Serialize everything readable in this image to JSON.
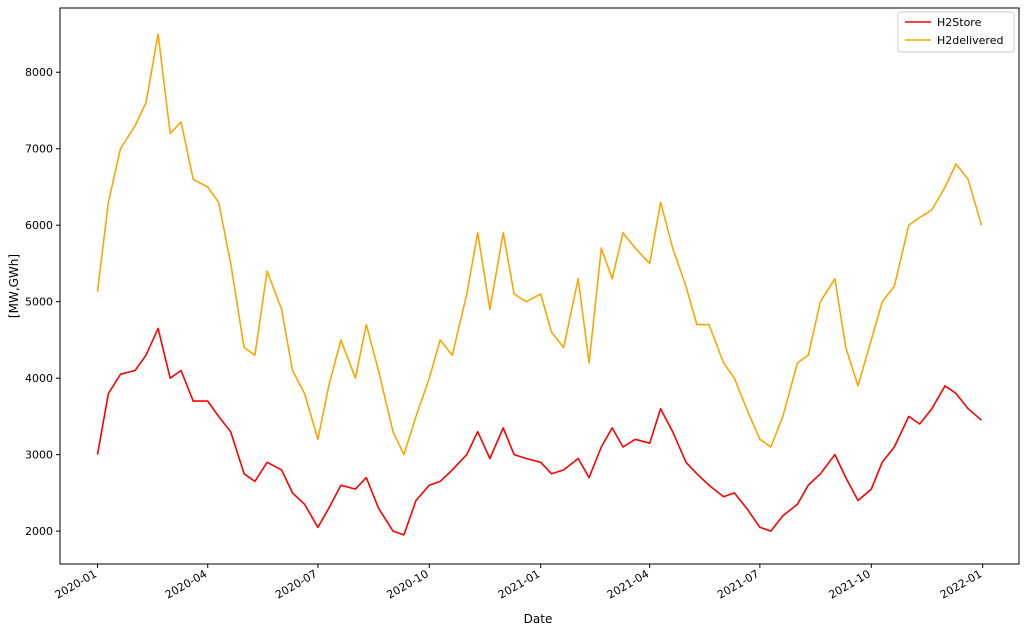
{
  "chart_data": {
    "type": "line",
    "title": "",
    "xlabel": "Date",
    "ylabel": "[MW,GWh]",
    "xlim": [
      "2019-12-01",
      "2022-01-31"
    ],
    "ylim": [
      1570,
      8840
    ],
    "x_ticks": [
      "2020-01",
      "2020-04",
      "2020-07",
      "2020-10",
      "2021-01",
      "2021-04",
      "2021-07",
      "2021-10",
      "2022-01"
    ],
    "y_ticks": [
      2000,
      3000,
      4000,
      5000,
      6000,
      7000,
      8000
    ],
    "grid": false,
    "legend": {
      "position": "top-right"
    },
    "series": [
      {
        "name": "H2Store",
        "color": "#ff0000",
        "x": [
          "2020-01-01",
          "2020-01-10",
          "2020-01-20",
          "2020-02-01",
          "2020-02-10",
          "2020-02-20",
          "2020-03-01",
          "2020-03-10",
          "2020-03-20",
          "2020-04-01",
          "2020-04-10",
          "2020-04-20",
          "2020-05-01",
          "2020-05-10",
          "2020-05-20",
          "2020-06-01",
          "2020-06-10",
          "2020-06-20",
          "2020-07-01",
          "2020-07-10",
          "2020-07-20",
          "2020-08-01",
          "2020-08-10",
          "2020-08-20",
          "2020-09-01",
          "2020-09-10",
          "2020-09-20",
          "2020-10-01",
          "2020-10-10",
          "2020-10-20",
          "2020-11-01",
          "2020-11-10",
          "2020-11-20",
          "2020-12-01",
          "2020-12-10",
          "2020-12-20",
          "2021-01-01",
          "2021-01-10",
          "2021-01-20",
          "2021-02-01",
          "2021-02-10",
          "2021-02-20",
          "2021-03-01",
          "2021-03-10",
          "2021-03-20",
          "2021-04-01",
          "2021-04-10",
          "2021-04-20",
          "2021-05-01",
          "2021-05-10",
          "2021-05-20",
          "2021-06-01",
          "2021-06-10",
          "2021-06-20",
          "2021-07-01",
          "2021-07-10",
          "2021-07-20",
          "2021-08-01",
          "2021-08-10",
          "2021-08-20",
          "2021-09-01",
          "2021-09-10",
          "2021-09-20",
          "2021-10-01",
          "2021-10-10",
          "2021-10-20",
          "2021-11-01",
          "2021-11-10",
          "2021-11-20",
          "2021-12-01",
          "2021-12-10",
          "2021-12-20",
          "2021-12-31"
        ],
        "y": [
          3000,
          3800,
          4050,
          4100,
          4300,
          4650,
          4000,
          4100,
          3700,
          3700,
          3500,
          3300,
          2750,
          2650,
          2900,
          2800,
          2500,
          2350,
          2050,
          2300,
          2600,
          2550,
          2700,
          2300,
          2000,
          1950,
          2400,
          2600,
          2650,
          2800,
          3000,
          3300,
          2950,
          3350,
          3000,
          2950,
          2900,
          2750,
          2800,
          2950,
          2700,
          3100,
          3350,
          3100,
          3200,
          3150,
          3600,
          3300,
          2900,
          2750,
          2600,
          2450,
          2500,
          2300,
          2050,
          2000,
          2200,
          2350,
          2600,
          2750,
          3000,
          2700,
          2400,
          2550,
          2900,
          3100,
          3500,
          3400,
          3600,
          3900,
          3800,
          3600,
          3450
        ]
      },
      {
        "name": "H2delivered",
        "color": "#ffa500",
        "x": [
          "2020-01-01",
          "2020-01-10",
          "2020-01-20",
          "2020-02-01",
          "2020-02-10",
          "2020-02-20",
          "2020-03-01",
          "2020-03-10",
          "2020-03-20",
          "2020-04-01",
          "2020-04-10",
          "2020-04-20",
          "2020-05-01",
          "2020-05-10",
          "2020-05-20",
          "2020-06-01",
          "2020-06-10",
          "2020-06-20",
          "2020-07-01",
          "2020-07-10",
          "2020-07-20",
          "2020-08-01",
          "2020-08-10",
          "2020-08-20",
          "2020-09-01",
          "2020-09-10",
          "2020-09-20",
          "2020-10-01",
          "2020-10-10",
          "2020-10-20",
          "2020-11-01",
          "2020-11-10",
          "2020-11-20",
          "2020-12-01",
          "2020-12-10",
          "2020-12-20",
          "2021-01-01",
          "2021-01-10",
          "2021-01-20",
          "2021-02-01",
          "2021-02-10",
          "2021-02-20",
          "2021-03-01",
          "2021-03-10",
          "2021-03-20",
          "2021-04-01",
          "2021-04-10",
          "2021-04-20",
          "2021-05-01",
          "2021-05-10",
          "2021-05-20",
          "2021-06-01",
          "2021-06-10",
          "2021-06-20",
          "2021-07-01",
          "2021-07-10",
          "2021-07-20",
          "2021-08-01",
          "2021-08-10",
          "2021-08-20",
          "2021-09-01",
          "2021-09-10",
          "2021-09-20",
          "2021-10-01",
          "2021-10-10",
          "2021-10-20",
          "2021-11-01",
          "2021-11-10",
          "2021-11-20",
          "2021-12-01",
          "2021-12-10",
          "2021-12-20",
          "2021-12-31"
        ],
        "y": [
          5130,
          6300,
          7000,
          7300,
          7600,
          8500,
          7200,
          7350,
          6600,
          6500,
          6300,
          5500,
          4400,
          4300,
          5400,
          4900,
          4100,
          3800,
          3200,
          3900,
          4500,
          4000,
          4700,
          4100,
          3300,
          3000,
          3500,
          4000,
          4500,
          4300,
          5100,
          5900,
          4900,
          5900,
          5100,
          5000,
          5100,
          4600,
          4400,
          5300,
          4200,
          5700,
          5300,
          5900,
          5700,
          5500,
          6300,
          5700,
          5200,
          4700,
          4700,
          4200,
          4000,
          3600,
          3200,
          3100,
          3500,
          4200,
          4300,
          5000,
          5300,
          4400,
          3900,
          4500,
          5000,
          5200,
          6000,
          6100,
          6200,
          6500,
          6800,
          6600,
          6000
        ]
      }
    ]
  }
}
